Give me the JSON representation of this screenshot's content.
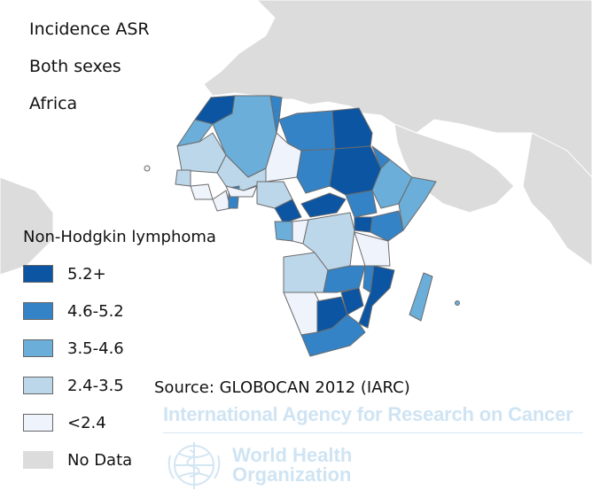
{
  "header": {
    "measure": "Incidence ASR",
    "sex": "Both sexes",
    "region": "Africa"
  },
  "legend": {
    "title": "Non-Hodgkin lymphoma",
    "items": [
      {
        "label": "5.2+",
        "color": "#0b55a3"
      },
      {
        "label": "4.6-5.2",
        "color": "#3483c6"
      },
      {
        "label": "3.5-4.6",
        "color": "#6aaed9"
      },
      {
        "label": "2.4-3.5",
        "color": "#bdd7ea"
      },
      {
        "label": "<2.4",
        "color": "#eef3fc"
      },
      {
        "label": "No Data",
        "color": "#dcdcdc"
      }
    ]
  },
  "source": "Source: GLOBOCAN 2012 (IARC)",
  "watermark": {
    "agency": "International Agency for Research on Cancer",
    "org_line1": "World Health",
    "org_line2": "Organization"
  },
  "colors": {
    "background_land": "#dcdcdc",
    "ocean": "#ffffff",
    "border": "#7a7a7a"
  }
}
